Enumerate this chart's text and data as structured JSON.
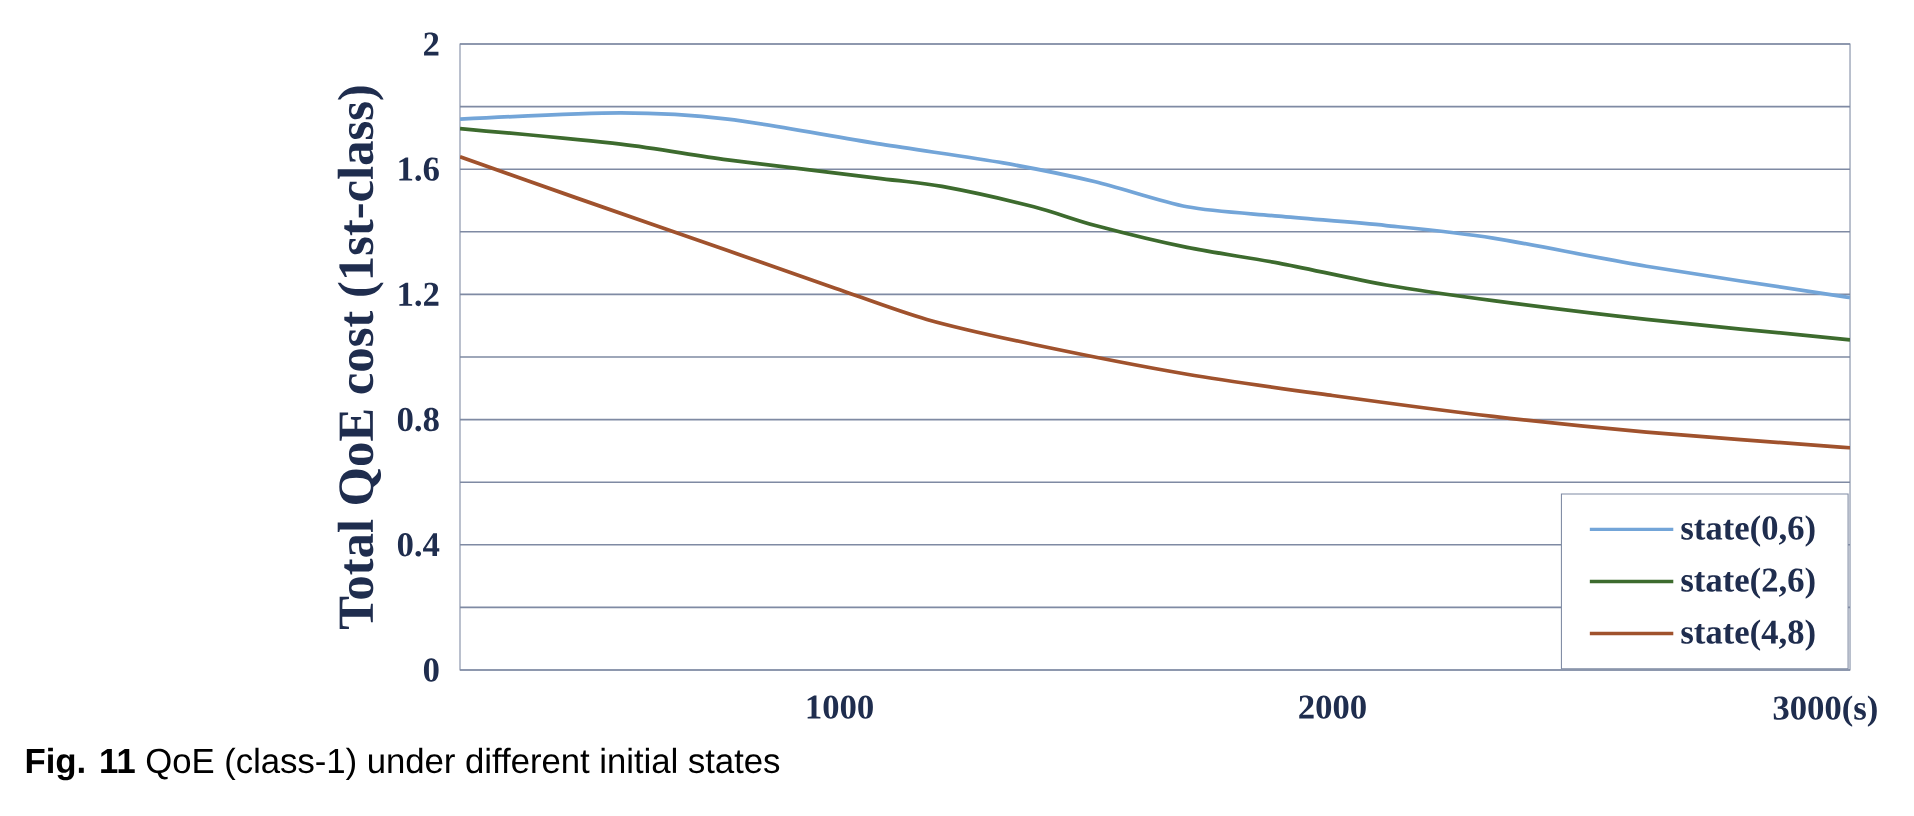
{
  "chart_data": {
    "type": "line",
    "ylabel": "Total QoE cost (1st-class)",
    "annotations": [
      "**Fig. 11** QoE (class-1) under different initial states"
    ],
    "xlim": [
      230,
      3050
    ],
    "ylim": [
      0,
      2
    ],
    "xticks": [
      1000,
      2000,
      {
        "value": 3000,
        "label": "3000(s)"
      }
    ],
    "yticks": [
      0,
      {
        "value": 0.2,
        "label": null
      },
      0.4,
      {
        "value": 0.6,
        "label": null
      },
      0.8,
      {
        "value": 1.0,
        "label": null
      },
      1.2,
      {
        "value": 1.4,
        "label": null
      },
      1.6,
      {
        "value": 1.8,
        "label": null
      },
      2
    ],
    "grid": "y",
    "legend": "bottom right",
    "series": [
      {
        "name": "state(0,6)",
        "color": "#73a5d8",
        "x": [
          230,
          556,
          773,
          1084,
          1332,
          1519,
          1705,
          1891,
          2109,
          2326,
          2637,
          3050
        ],
        "values": [
          1.76,
          1.78,
          1.76,
          1.68,
          1.62,
          1.56,
          1.48,
          1.45,
          1.42,
          1.38,
          1.29,
          1.19
        ]
      },
      {
        "name": "state(2,6)",
        "color": "#3d6b2e",
        "x": [
          230,
          556,
          773,
          1084,
          1208,
          1394,
          1519,
          1705,
          1891,
          2109,
          2326,
          2637,
          3050
        ],
        "values": [
          1.73,
          1.68,
          1.63,
          1.57,
          1.545,
          1.48,
          1.42,
          1.35,
          1.3,
          1.23,
          1.18,
          1.12,
          1.055
        ]
      },
      {
        "name": "state(4,8)",
        "color": "#a0522d",
        "x": [
          230,
          463,
          773,
          991,
          1177,
          1394,
          1705,
          2000,
          2326,
          2637,
          3050
        ],
        "values": [
          1.64,
          1.51,
          1.34,
          1.22,
          1.12,
          1.04,
          0.945,
          0.877,
          0.81,
          0.76,
          0.71
        ]
      }
    ]
  }
}
